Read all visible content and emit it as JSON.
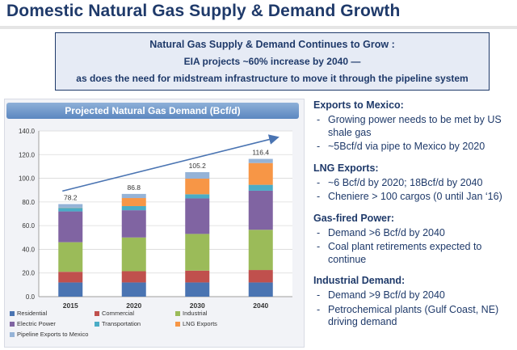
{
  "title": "Domestic Natural Gas Supply & Demand Growth",
  "callout": {
    "line1": "Natural Gas Supply & Demand Continues to Grow :",
    "line2": "EIA projects ~60% increase by 2040 —",
    "line3": "as does the need for midstream infrastructure to move it through the pipeline system"
  },
  "chart_data": {
    "type": "bar",
    "stacked": true,
    "title": "Projected Natural Gas Demand (Bcf/d)",
    "categories": [
      "2015",
      "2020",
      "2030",
      "2040"
    ],
    "ylim": [
      0,
      140
    ],
    "yticks": [
      "0.0",
      "20.0",
      "40.0",
      "60.0",
      "80.0",
      "100.0",
      "120.0",
      "140.0"
    ],
    "ytick_values": [
      0,
      20,
      40,
      60,
      80,
      100,
      120,
      140
    ],
    "totals": [
      78.2,
      86.8,
      105.2,
      116.4
    ],
    "total_labels": [
      "78.2",
      "86.8",
      "105.2",
      "116.4"
    ],
    "trend_arrow": true,
    "series": [
      {
        "name": "Residential",
        "color": "#4a74b2",
        "values": [
          12.0,
          12.0,
          12.0,
          12.0
        ]
      },
      {
        "name": "Commercial",
        "color": "#c0504d",
        "values": [
          9.0,
          9.5,
          10.0,
          10.5
        ]
      },
      {
        "name": "Industrial",
        "color": "#9bbb59",
        "values": [
          25.0,
          28.5,
          31.0,
          34.0
        ]
      },
      {
        "name": "Electric Power",
        "color": "#8064a2",
        "values": [
          26.0,
          23.0,
          30.0,
          33.0
        ]
      },
      {
        "name": "Transportation",
        "color": "#4bacc6",
        "values": [
          3.0,
          3.5,
          3.5,
          5.0
        ]
      },
      {
        "name": "LNG Exports",
        "color": "#f79646",
        "values": [
          0.2,
          6.8,
          13.2,
          18.4
        ]
      },
      {
        "name": "Pipeline Exports to Mexico",
        "color": "#95b3d7",
        "values": [
          3.0,
          3.5,
          5.5,
          3.5
        ]
      }
    ]
  },
  "sections": [
    {
      "heading": "Exports to Mexico:",
      "bullets": [
        "Growing power needs to be met by US shale gas",
        "~5Bcf/d via pipe to Mexico by 2020"
      ]
    },
    {
      "heading": "LNG Exports:",
      "bullets": [
        "~6 Bcf/d by 2020; 18Bcf/d by 2040",
        "Cheniere > 100 cargos (0 until Jan ‘16)"
      ]
    },
    {
      "heading": "Gas-fired Power:",
      "bullets": [
        "Demand >6 Bcf/d by 2040",
        "Coal plant retirements expected to continue"
      ]
    },
    {
      "heading": "Industrial Demand:",
      "bullets": [
        "Demand >9 Bcf/d by 2040",
        "Petrochemical plants (Gulf Coast, NE) driving demand"
      ]
    }
  ]
}
